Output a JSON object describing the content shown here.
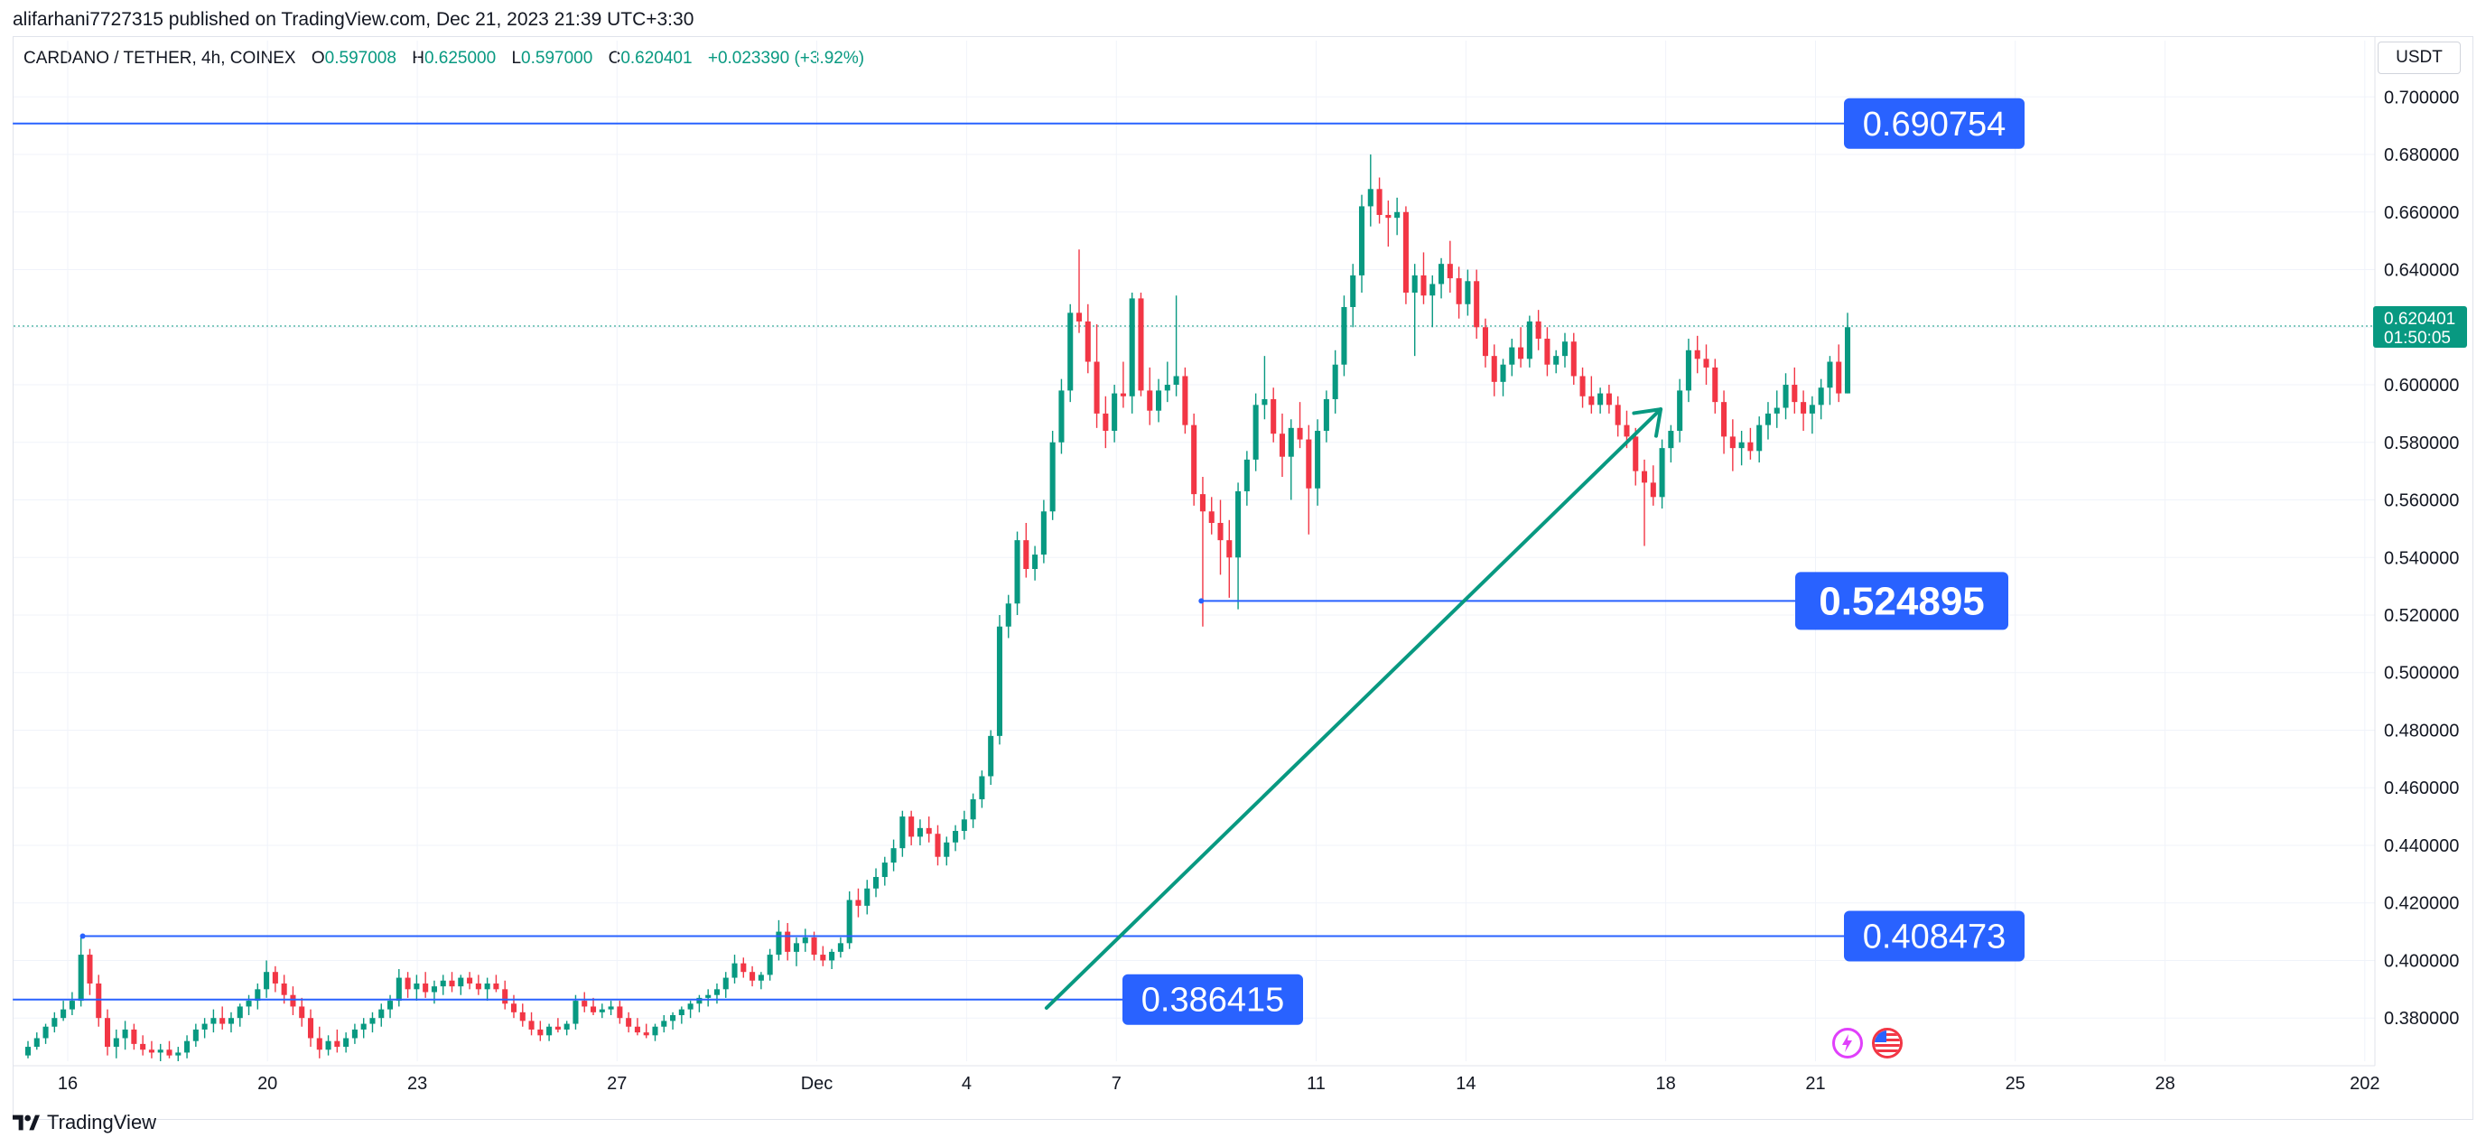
{
  "header": {
    "published_by": "alifarhani7727315 published on TradingView.com, Dec 21, 2023 21:39 UTC+3:30"
  },
  "symbol": {
    "name": "CARDANO / TETHER, 4h, COINEX",
    "o_label": "O",
    "o": "0.597008",
    "h_label": "H",
    "h": "0.625000",
    "l_label": "L",
    "l": "0.597000",
    "c_label": "C",
    "c": "0.620401",
    "change": "+0.023390 (+3.92%)"
  },
  "currency": "USDT",
  "footer": {
    "brand": "TradingView"
  },
  "colors": {
    "up": "#089981",
    "down": "#f23645",
    "level": "#2962ff",
    "trend": "#089981"
  },
  "icons": [
    "lightning-event-icon",
    "us-flag-icon"
  ],
  "chart_data": {
    "type": "candlestick",
    "timeframe": "4h",
    "price_axis": {
      "ylim": [
        0.365,
        0.707
      ],
      "ticks": [
        "0.700000",
        "0.680000",
        "0.660000",
        "0.640000",
        "0.620000",
        "0.600000",
        "0.580000",
        "0.560000",
        "0.540000",
        "0.520000",
        "0.500000",
        "0.480000",
        "0.460000",
        "0.440000",
        "0.420000",
        "0.400000",
        "0.380000"
      ]
    },
    "time_axis": {
      "ticks": [
        {
          "label": "16",
          "day": 0
        },
        {
          "label": "20",
          "day": 4
        },
        {
          "label": "23",
          "day": 7
        },
        {
          "label": "27",
          "day": 11
        },
        {
          "label": "Dec",
          "day": 15
        },
        {
          "label": "4",
          "day": 18
        },
        {
          "label": "7",
          "day": 21
        },
        {
          "label": "11",
          "day": 25
        },
        {
          "label": "14",
          "day": 28
        },
        {
          "label": "18",
          "day": 32
        },
        {
          "label": "21",
          "day": 35
        },
        {
          "label": "25",
          "day": 39
        },
        {
          "label": "28",
          "day": 42
        },
        {
          "label": "202",
          "day": 46
        }
      ]
    },
    "last_price": {
      "value": "0.620401",
      "countdown": "01:50:05"
    },
    "levels": [
      {
        "label": "0.690754",
        "value": 0.690754,
        "from_day": -1.1
      },
      {
        "label": "0.524895",
        "value": 0.524895,
        "from_day": 22.7
      },
      {
        "label": "0.408473",
        "value": 0.408473,
        "from_day": 0.3
      },
      {
        "label": "0.386415",
        "value": 0.386415,
        "from_day": -1.1
      }
    ],
    "trendline": {
      "from": {
        "day": 19.6,
        "price": 0.3835
      },
      "to": {
        "day": 31.9,
        "price": 0.5915
      }
    },
    "candles": [
      [
        0.367,
        0.372,
        0.366,
        0.37
      ],
      [
        0.37,
        0.375,
        0.369,
        0.373
      ],
      [
        0.373,
        0.378,
        0.371,
        0.377
      ],
      [
        0.377,
        0.382,
        0.375,
        0.38
      ],
      [
        0.38,
        0.386,
        0.379,
        0.383
      ],
      [
        0.383,
        0.389,
        0.381,
        0.386
      ],
      [
        0.386,
        0.408,
        0.384,
        0.402
      ],
      [
        0.402,
        0.404,
        0.388,
        0.392
      ],
      [
        0.392,
        0.395,
        0.377,
        0.38
      ],
      [
        0.38,
        0.383,
        0.367,
        0.37
      ],
      [
        0.37,
        0.376,
        0.366,
        0.373
      ],
      [
        0.373,
        0.379,
        0.369,
        0.376
      ],
      [
        0.376,
        0.378,
        0.369,
        0.371
      ],
      [
        0.371,
        0.374,
        0.367,
        0.369
      ],
      [
        0.369,
        0.372,
        0.366,
        0.368
      ],
      [
        0.368,
        0.371,
        0.365,
        0.369
      ],
      [
        0.369,
        0.372,
        0.366,
        0.367
      ],
      [
        0.367,
        0.37,
        0.365,
        0.368
      ],
      [
        0.368,
        0.374,
        0.366,
        0.372
      ],
      [
        0.372,
        0.378,
        0.37,
        0.376
      ],
      [
        0.376,
        0.38,
        0.373,
        0.378
      ],
      [
        0.378,
        0.383,
        0.375,
        0.38
      ],
      [
        0.38,
        0.384,
        0.376,
        0.378
      ],
      [
        0.378,
        0.382,
        0.375,
        0.38
      ],
      [
        0.38,
        0.385,
        0.377,
        0.384
      ],
      [
        0.384,
        0.388,
        0.381,
        0.386
      ],
      [
        0.386,
        0.392,
        0.383,
        0.39
      ],
      [
        0.39,
        0.4,
        0.387,
        0.396
      ],
      [
        0.396,
        0.398,
        0.389,
        0.392
      ],
      [
        0.392,
        0.395,
        0.385,
        0.388
      ],
      [
        0.388,
        0.391,
        0.381,
        0.384
      ],
      [
        0.384,
        0.387,
        0.377,
        0.38
      ],
      [
        0.38,
        0.383,
        0.37,
        0.373
      ],
      [
        0.373,
        0.377,
        0.366,
        0.369
      ],
      [
        0.369,
        0.374,
        0.367,
        0.372
      ],
      [
        0.372,
        0.376,
        0.368,
        0.37
      ],
      [
        0.37,
        0.375,
        0.368,
        0.373
      ],
      [
        0.373,
        0.378,
        0.371,
        0.376
      ],
      [
        0.376,
        0.38,
        0.373,
        0.378
      ],
      [
        0.378,
        0.382,
        0.375,
        0.38
      ],
      [
        0.38,
        0.385,
        0.377,
        0.383
      ],
      [
        0.383,
        0.388,
        0.38,
        0.386
      ],
      [
        0.386,
        0.397,
        0.384,
        0.394
      ],
      [
        0.394,
        0.396,
        0.387,
        0.39
      ],
      [
        0.39,
        0.395,
        0.386,
        0.392
      ],
      [
        0.392,
        0.396,
        0.387,
        0.389
      ],
      [
        0.389,
        0.393,
        0.385,
        0.391
      ],
      [
        0.391,
        0.395,
        0.388,
        0.393
      ],
      [
        0.393,
        0.396,
        0.389,
        0.391
      ],
      [
        0.391,
        0.395,
        0.388,
        0.394
      ],
      [
        0.394,
        0.396,
        0.39,
        0.392
      ],
      [
        0.392,
        0.395,
        0.388,
        0.39
      ],
      [
        0.39,
        0.394,
        0.386,
        0.392
      ],
      [
        0.392,
        0.395,
        0.389,
        0.39
      ],
      [
        0.39,
        0.393,
        0.383,
        0.385
      ],
      [
        0.385,
        0.388,
        0.38,
        0.382
      ],
      [
        0.382,
        0.385,
        0.377,
        0.379
      ],
      [
        0.379,
        0.382,
        0.374,
        0.376
      ],
      [
        0.376,
        0.379,
        0.372,
        0.374
      ],
      [
        0.374,
        0.378,
        0.372,
        0.377
      ],
      [
        0.377,
        0.38,
        0.375,
        0.376
      ],
      [
        0.376,
        0.379,
        0.374,
        0.378
      ],
      [
        0.378,
        0.388,
        0.376,
        0.386
      ],
      [
        0.386,
        0.389,
        0.382,
        0.384
      ],
      [
        0.384,
        0.387,
        0.381,
        0.382
      ],
      [
        0.382,
        0.385,
        0.38,
        0.383
      ],
      [
        0.383,
        0.386,
        0.381,
        0.384
      ],
      [
        0.384,
        0.386,
        0.378,
        0.38
      ],
      [
        0.38,
        0.382,
        0.375,
        0.377
      ],
      [
        0.377,
        0.38,
        0.374,
        0.375
      ],
      [
        0.375,
        0.378,
        0.373,
        0.374
      ],
      [
        0.374,
        0.378,
        0.372,
        0.377
      ],
      [
        0.377,
        0.381,
        0.375,
        0.379
      ],
      [
        0.379,
        0.382,
        0.376,
        0.381
      ],
      [
        0.381,
        0.384,
        0.378,
        0.383
      ],
      [
        0.383,
        0.386,
        0.38,
        0.385
      ],
      [
        0.385,
        0.388,
        0.382,
        0.387
      ],
      [
        0.387,
        0.39,
        0.384,
        0.388
      ],
      [
        0.388,
        0.392,
        0.385,
        0.39
      ],
      [
        0.39,
        0.396,
        0.387,
        0.394
      ],
      [
        0.394,
        0.402,
        0.392,
        0.399
      ],
      [
        0.399,
        0.401,
        0.394,
        0.396
      ],
      [
        0.396,
        0.398,
        0.391,
        0.393
      ],
      [
        0.393,
        0.396,
        0.39,
        0.395
      ],
      [
        0.395,
        0.404,
        0.393,
        0.402
      ],
      [
        0.402,
        0.414,
        0.4,
        0.41
      ],
      [
        0.41,
        0.413,
        0.4,
        0.403
      ],
      [
        0.403,
        0.408,
        0.398,
        0.406
      ],
      [
        0.406,
        0.411,
        0.403,
        0.408
      ],
      [
        0.408,
        0.41,
        0.4,
        0.402
      ],
      [
        0.402,
        0.405,
        0.398,
        0.4
      ],
      [
        0.4,
        0.404,
        0.397,
        0.403
      ],
      [
        0.403,
        0.408,
        0.401,
        0.406
      ],
      [
        0.406,
        0.424,
        0.404,
        0.421
      ],
      [
        0.421,
        0.425,
        0.415,
        0.419
      ],
      [
        0.419,
        0.428,
        0.416,
        0.425
      ],
      [
        0.425,
        0.432,
        0.422,
        0.429
      ],
      [
        0.429,
        0.436,
        0.426,
        0.434
      ],
      [
        0.434,
        0.442,
        0.431,
        0.439
      ],
      [
        0.439,
        0.452,
        0.436,
        0.45
      ],
      [
        0.45,
        0.452,
        0.44,
        0.443
      ],
      [
        0.443,
        0.449,
        0.44,
        0.446
      ],
      [
        0.446,
        0.45,
        0.441,
        0.444
      ],
      [
        0.444,
        0.447,
        0.433,
        0.436
      ],
      [
        0.436,
        0.443,
        0.433,
        0.441
      ],
      [
        0.441,
        0.447,
        0.438,
        0.445
      ],
      [
        0.445,
        0.452,
        0.442,
        0.449
      ],
      [
        0.449,
        0.458,
        0.446,
        0.456
      ],
      [
        0.456,
        0.466,
        0.453,
        0.464
      ],
      [
        0.464,
        0.48,
        0.461,
        0.478
      ],
      [
        0.478,
        0.52,
        0.475,
        0.516
      ],
      [
        0.516,
        0.527,
        0.512,
        0.524
      ],
      [
        0.524,
        0.549,
        0.52,
        0.546
      ],
      [
        0.546,
        0.552,
        0.533,
        0.536
      ],
      [
        0.536,
        0.544,
        0.532,
        0.541
      ],
      [
        0.541,
        0.56,
        0.538,
        0.556
      ],
      [
        0.556,
        0.584,
        0.553,
        0.58
      ],
      [
        0.58,
        0.602,
        0.576,
        0.598
      ],
      [
        0.598,
        0.628,
        0.594,
        0.625
      ],
      [
        0.625,
        0.647,
        0.618,
        0.622
      ],
      [
        0.622,
        0.628,
        0.604,
        0.608
      ],
      [
        0.608,
        0.621,
        0.585,
        0.59
      ],
      [
        0.59,
        0.596,
        0.578,
        0.584
      ],
      [
        0.584,
        0.6,
        0.58,
        0.597
      ],
      [
        0.597,
        0.608,
        0.592,
        0.596
      ],
      [
        0.596,
        0.632,
        0.59,
        0.63
      ],
      [
        0.63,
        0.632,
        0.596,
        0.598
      ],
      [
        0.598,
        0.606,
        0.586,
        0.591
      ],
      [
        0.591,
        0.602,
        0.587,
        0.598
      ],
      [
        0.598,
        0.608,
        0.594,
        0.6
      ],
      [
        0.6,
        0.631,
        0.596,
        0.603
      ],
      [
        0.603,
        0.606,
        0.583,
        0.586
      ],
      [
        0.586,
        0.59,
        0.558,
        0.562
      ],
      [
        0.562,
        0.568,
        0.516,
        0.556
      ],
      [
        0.556,
        0.561,
        0.548,
        0.552
      ],
      [
        0.552,
        0.56,
        0.534,
        0.546
      ],
      [
        0.546,
        0.553,
        0.526,
        0.54
      ],
      [
        0.54,
        0.566,
        0.522,
        0.563
      ],
      [
        0.563,
        0.577,
        0.558,
        0.574
      ],
      [
        0.574,
        0.597,
        0.57,
        0.593
      ],
      [
        0.593,
        0.61,
        0.588,
        0.595
      ],
      [
        0.595,
        0.599,
        0.58,
        0.583
      ],
      [
        0.583,
        0.59,
        0.568,
        0.575
      ],
      [
        0.575,
        0.588,
        0.56,
        0.585
      ],
      [
        0.585,
        0.594,
        0.578,
        0.581
      ],
      [
        0.581,
        0.586,
        0.548,
        0.564
      ],
      [
        0.564,
        0.588,
        0.558,
        0.584
      ],
      [
        0.584,
        0.598,
        0.58,
        0.595
      ],
      [
        0.595,
        0.612,
        0.59,
        0.607
      ],
      [
        0.607,
        0.631,
        0.603,
        0.627
      ],
      [
        0.627,
        0.642,
        0.62,
        0.638
      ],
      [
        0.638,
        0.666,
        0.632,
        0.662
      ],
      [
        0.662,
        0.68,
        0.655,
        0.668
      ],
      [
        0.668,
        0.672,
        0.656,
        0.659
      ],
      [
        0.659,
        0.664,
        0.648,
        0.658
      ],
      [
        0.658,
        0.665,
        0.652,
        0.66
      ],
      [
        0.66,
        0.662,
        0.628,
        0.632
      ],
      [
        0.632,
        0.642,
        0.61,
        0.638
      ],
      [
        0.638,
        0.646,
        0.628,
        0.631
      ],
      [
        0.631,
        0.638,
        0.62,
        0.635
      ],
      [
        0.635,
        0.644,
        0.63,
        0.642
      ],
      [
        0.642,
        0.65,
        0.632,
        0.637
      ],
      [
        0.637,
        0.641,
        0.623,
        0.628
      ],
      [
        0.628,
        0.64,
        0.624,
        0.636
      ],
      [
        0.636,
        0.64,
        0.616,
        0.62
      ],
      [
        0.62,
        0.623,
        0.606,
        0.61
      ],
      [
        0.61,
        0.614,
        0.596,
        0.601
      ],
      [
        0.601,
        0.609,
        0.596,
        0.607
      ],
      [
        0.607,
        0.616,
        0.603,
        0.613
      ],
      [
        0.613,
        0.62,
        0.606,
        0.609
      ],
      [
        0.609,
        0.624,
        0.606,
        0.622
      ],
      [
        0.622,
        0.626,
        0.612,
        0.616
      ],
      [
        0.616,
        0.62,
        0.603,
        0.607
      ],
      [
        0.607,
        0.612,
        0.604,
        0.61
      ],
      [
        0.61,
        0.618,
        0.606,
        0.615
      ],
      [
        0.615,
        0.618,
        0.6,
        0.603
      ],
      [
        0.603,
        0.606,
        0.592,
        0.596
      ],
      [
        0.596,
        0.603,
        0.59,
        0.593
      ],
      [
        0.593,
        0.599,
        0.59,
        0.597
      ],
      [
        0.597,
        0.6,
        0.59,
        0.593
      ],
      [
        0.593,
        0.596,
        0.582,
        0.586
      ],
      [
        0.586,
        0.591,
        0.578,
        0.582
      ],
      [
        0.582,
        0.585,
        0.565,
        0.57
      ],
      [
        0.57,
        0.574,
        0.544,
        0.566
      ],
      [
        0.566,
        0.572,
        0.558,
        0.561
      ],
      [
        0.561,
        0.581,
        0.557,
        0.578
      ],
      [
        0.578,
        0.586,
        0.573,
        0.584
      ],
      [
        0.584,
        0.602,
        0.58,
        0.598
      ],
      [
        0.598,
        0.616,
        0.594,
        0.612
      ],
      [
        0.612,
        0.617,
        0.604,
        0.609
      ],
      [
        0.609,
        0.614,
        0.6,
        0.606
      ],
      [
        0.606,
        0.609,
        0.59,
        0.594
      ],
      [
        0.594,
        0.598,
        0.576,
        0.582
      ],
      [
        0.582,
        0.588,
        0.57,
        0.578
      ],
      [
        0.578,
        0.584,
        0.572,
        0.58
      ],
      [
        0.58,
        0.585,
        0.574,
        0.577
      ],
      [
        0.577,
        0.589,
        0.573,
        0.586
      ],
      [
        0.586,
        0.594,
        0.581,
        0.59
      ],
      [
        0.59,
        0.598,
        0.585,
        0.592
      ],
      [
        0.592,
        0.604,
        0.588,
        0.6
      ],
      [
        0.6,
        0.606,
        0.59,
        0.594
      ],
      [
        0.594,
        0.598,
        0.584,
        0.59
      ],
      [
        0.59,
        0.596,
        0.583,
        0.593
      ],
      [
        0.593,
        0.602,
        0.588,
        0.599
      ],
      [
        0.599,
        0.61,
        0.593,
        0.608
      ],
      [
        0.608,
        0.614,
        0.594,
        0.597
      ],
      [
        0.597,
        0.625,
        0.597,
        0.62
      ]
    ]
  }
}
